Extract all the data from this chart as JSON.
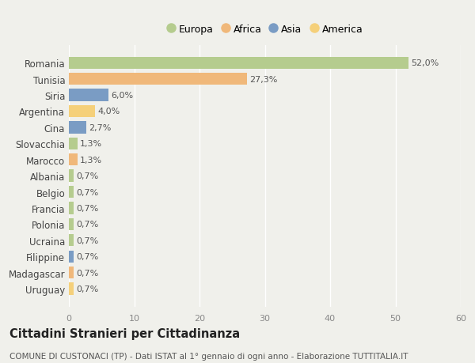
{
  "countries": [
    "Romania",
    "Tunisia",
    "Siria",
    "Argentina",
    "Cina",
    "Slovacchia",
    "Marocco",
    "Albania",
    "Belgio",
    "Francia",
    "Polonia",
    "Ucraina",
    "Filippine",
    "Madagascar",
    "Uruguay"
  ],
  "values": [
    52.0,
    27.3,
    6.0,
    4.0,
    2.7,
    1.3,
    1.3,
    0.7,
    0.7,
    0.7,
    0.7,
    0.7,
    0.7,
    0.7,
    0.7
  ],
  "labels": [
    "52,0%",
    "27,3%",
    "6,0%",
    "4,0%",
    "2,7%",
    "1,3%",
    "1,3%",
    "0,7%",
    "0,7%",
    "0,7%",
    "0,7%",
    "0,7%",
    "0,7%",
    "0,7%",
    "0,7%"
  ],
  "continents": [
    "Europa",
    "Africa",
    "Asia",
    "America",
    "Asia",
    "Europa",
    "Africa",
    "Europa",
    "Europa",
    "Europa",
    "Europa",
    "Europa",
    "Asia",
    "Africa",
    "America"
  ],
  "continent_colors": {
    "Europa": "#b5cc8e",
    "Africa": "#f0b87a",
    "Asia": "#7a9cc4",
    "America": "#f5d07a"
  },
  "legend_order": [
    "Europa",
    "Africa",
    "Asia",
    "America"
  ],
  "xlim": [
    0,
    60
  ],
  "xticks": [
    0,
    10,
    20,
    30,
    40,
    50,
    60
  ],
  "title": "Cittadini Stranieri per Cittadinanza",
  "subtitle": "COMUNE DI CUSTONACI (TP) - Dati ISTAT al 1° gennaio di ogni anno - Elaborazione TUTTITALIA.IT",
  "background_color": "#f0f0eb",
  "bar_height": 0.75,
  "label_fontsize": 8.0,
  "ytick_fontsize": 8.5,
  "xtick_fontsize": 8.0,
  "title_fontsize": 10.5,
  "subtitle_fontsize": 7.5,
  "legend_fontsize": 9.0
}
